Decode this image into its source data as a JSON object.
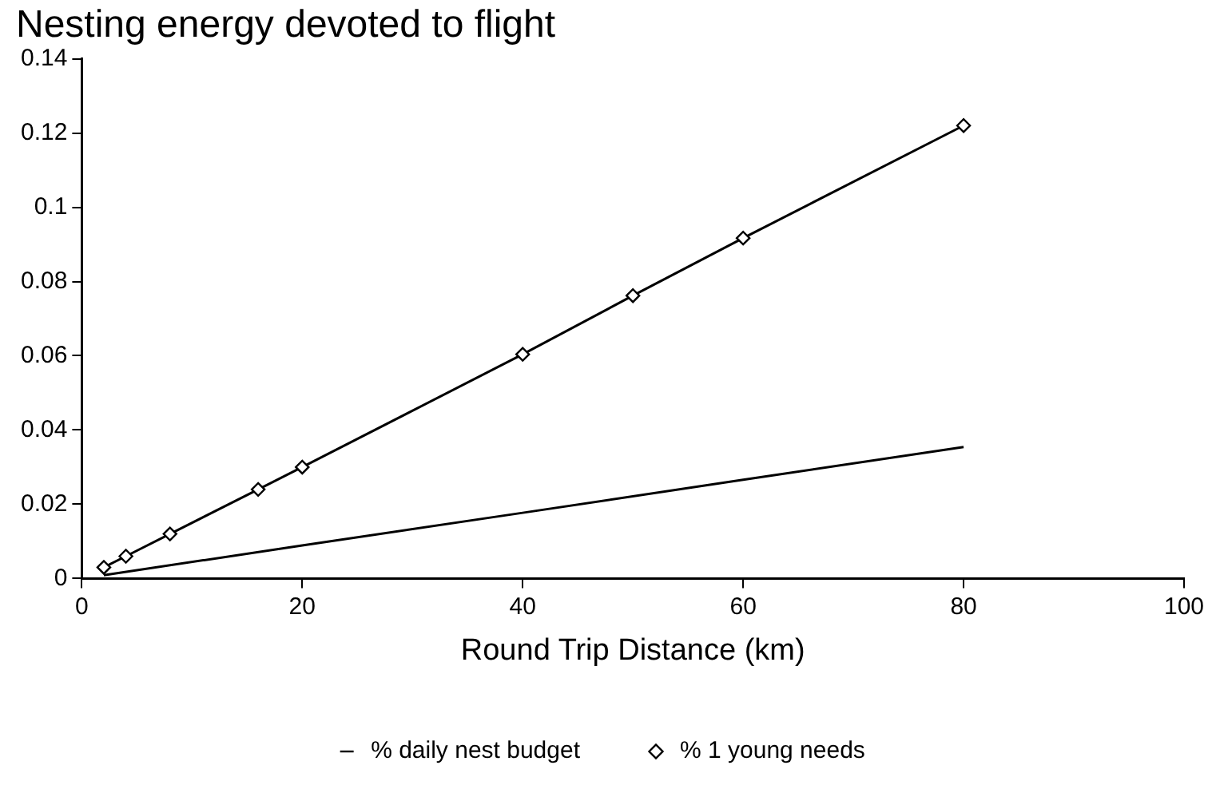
{
  "chart_data": {
    "type": "line",
    "title": "Nesting energy devoted to flight",
    "xlabel": "Round Trip Distance (km)",
    "xlim": [
      0,
      100
    ],
    "xticks": [
      0,
      20,
      40,
      60,
      80,
      100
    ],
    "ylim": [
      0,
      0.14
    ],
    "yticks": [
      0,
      0.02,
      0.04,
      0.06,
      0.08,
      0.1,
      0.12,
      0.14
    ],
    "grid": false,
    "legend": "bottom",
    "line_style": "solid",
    "series": [
      {
        "name": "% daily nest budget",
        "color": "#000000",
        "marker": "none",
        "x": [
          2,
          20,
          40,
          60,
          80
        ],
        "values": [
          0.0009,
          0.0089,
          0.0177,
          0.0266,
          0.0354
        ]
      },
      {
        "name": "% 1 young needs",
        "color": "#000000",
        "marker": "diamond",
        "x": [
          2,
          4,
          8,
          16,
          20,
          40,
          50,
          60,
          80
        ],
        "values": [
          0.003,
          0.006,
          0.012,
          0.024,
          0.03,
          0.0604,
          0.0762,
          0.0917,
          0.122
        ]
      }
    ]
  }
}
